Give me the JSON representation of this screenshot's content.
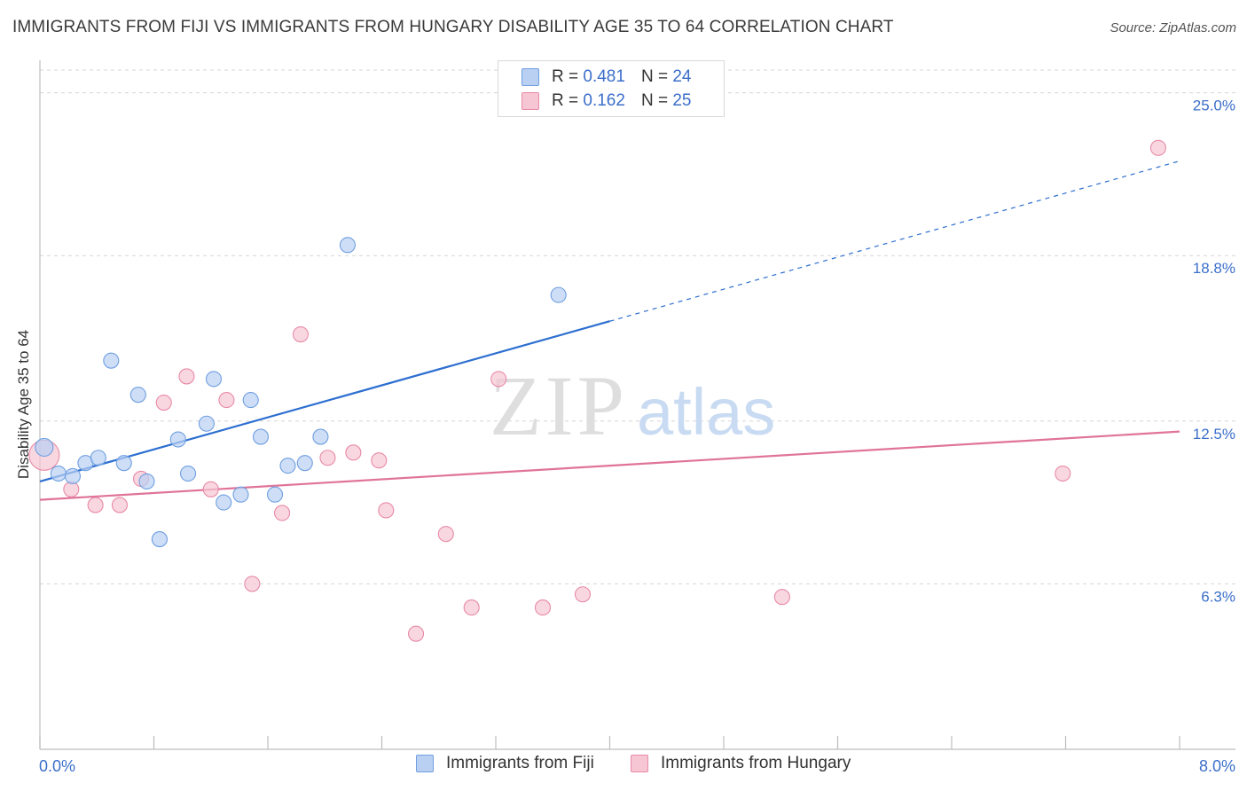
{
  "chart_data": {
    "type": "scatter",
    "title": "IMMIGRANTS FROM FIJI VS IMMIGRANTS FROM HUNGARY DISABILITY AGE 35 TO 64 CORRELATION CHART",
    "source": "Source: ZipAtlas.com",
    "ylabel": "Disability Age 35 to 64",
    "xlim": [
      0.0,
      8.0
    ],
    "ylim": [
      0.0,
      26.1
    ],
    "x_tick_labels": [
      "0.0%",
      "8.0%"
    ],
    "y_ticks": [
      6.3,
      12.5,
      18.8,
      25.0
    ],
    "y_tick_labels": [
      "6.3%",
      "12.5%",
      "18.8%",
      "25.0%"
    ],
    "grid": "horizontal dashed",
    "watermark": {
      "zip": "ZIP",
      "atlas": "atlas"
    },
    "series": [
      {
        "name": "Immigrants from Fiji",
        "color": "#6f9fe0",
        "fill": "#b9d0f3",
        "line_color": "#2d6fd0",
        "R_label": "R =",
        "R": "0.481",
        "N_label": "N =",
        "N": "24",
        "trend": {
          "x0": 0.0,
          "y0": 10.2,
          "x1": 4.0,
          "y1": 16.3,
          "x_dash_end": 8.0,
          "y_dash_end": 22.4
        },
        "points": [
          {
            "x": 0.03,
            "y": 11.5
          },
          {
            "x": 0.13,
            "y": 10.5
          },
          {
            "x": 0.23,
            "y": 10.4
          },
          {
            "x": 0.32,
            "y": 10.9
          },
          {
            "x": 0.41,
            "y": 11.1
          },
          {
            "x": 0.59,
            "y": 10.9
          },
          {
            "x": 0.5,
            "y": 14.8
          },
          {
            "x": 0.69,
            "y": 13.5
          },
          {
            "x": 0.75,
            "y": 10.2
          },
          {
            "x": 0.84,
            "y": 8.0
          },
          {
            "x": 0.97,
            "y": 11.8
          },
          {
            "x": 1.04,
            "y": 10.5
          },
          {
            "x": 1.17,
            "y": 12.4
          },
          {
            "x": 1.22,
            "y": 14.1
          },
          {
            "x": 1.29,
            "y": 9.4
          },
          {
            "x": 1.41,
            "y": 9.7
          },
          {
            "x": 1.48,
            "y": 13.3
          },
          {
            "x": 1.55,
            "y": 11.9
          },
          {
            "x": 1.65,
            "y": 9.7
          },
          {
            "x": 1.74,
            "y": 10.8
          },
          {
            "x": 1.86,
            "y": 10.9
          },
          {
            "x": 1.97,
            "y": 11.9
          },
          {
            "x": 2.16,
            "y": 19.2
          },
          {
            "x": 3.64,
            "y": 17.3
          }
        ]
      },
      {
        "name": "Immigrants from Hungary",
        "color": "#e88aa7",
        "fill": "#f7c6d4",
        "line_color": "#e07399",
        "R_label": "R =",
        "R": "0.162",
        "N_label": "N =",
        "N": "25",
        "trend": {
          "x0": 0.0,
          "y0": 9.5,
          "x1": 8.0,
          "y1": 12.1
        },
        "points": [
          {
            "x": 0.03,
            "y": 11.2
          },
          {
            "x": 0.22,
            "y": 9.9
          },
          {
            "x": 0.39,
            "y": 9.3
          },
          {
            "x": 0.56,
            "y": 9.3
          },
          {
            "x": 0.71,
            "y": 10.3
          },
          {
            "x": 0.87,
            "y": 13.2
          },
          {
            "x": 1.03,
            "y": 14.2
          },
          {
            "x": 1.2,
            "y": 9.9
          },
          {
            "x": 1.31,
            "y": 13.3
          },
          {
            "x": 1.49,
            "y": 6.3
          },
          {
            "x": 1.7,
            "y": 9.0
          },
          {
            "x": 1.83,
            "y": 15.8
          },
          {
            "x": 2.02,
            "y": 11.1
          },
          {
            "x": 2.2,
            "y": 11.3
          },
          {
            "x": 2.38,
            "y": 11.0
          },
          {
            "x": 2.43,
            "y": 9.1
          },
          {
            "x": 2.64,
            "y": 4.4
          },
          {
            "x": 2.85,
            "y": 8.2
          },
          {
            "x": 3.03,
            "y": 5.4
          },
          {
            "x": 3.22,
            "y": 14.1
          },
          {
            "x": 3.53,
            "y": 5.4
          },
          {
            "x": 3.81,
            "y": 5.9
          },
          {
            "x": 5.21,
            "y": 5.8
          },
          {
            "x": 7.18,
            "y": 10.5
          },
          {
            "x": 7.85,
            "y": 22.9
          }
        ]
      }
    ]
  }
}
